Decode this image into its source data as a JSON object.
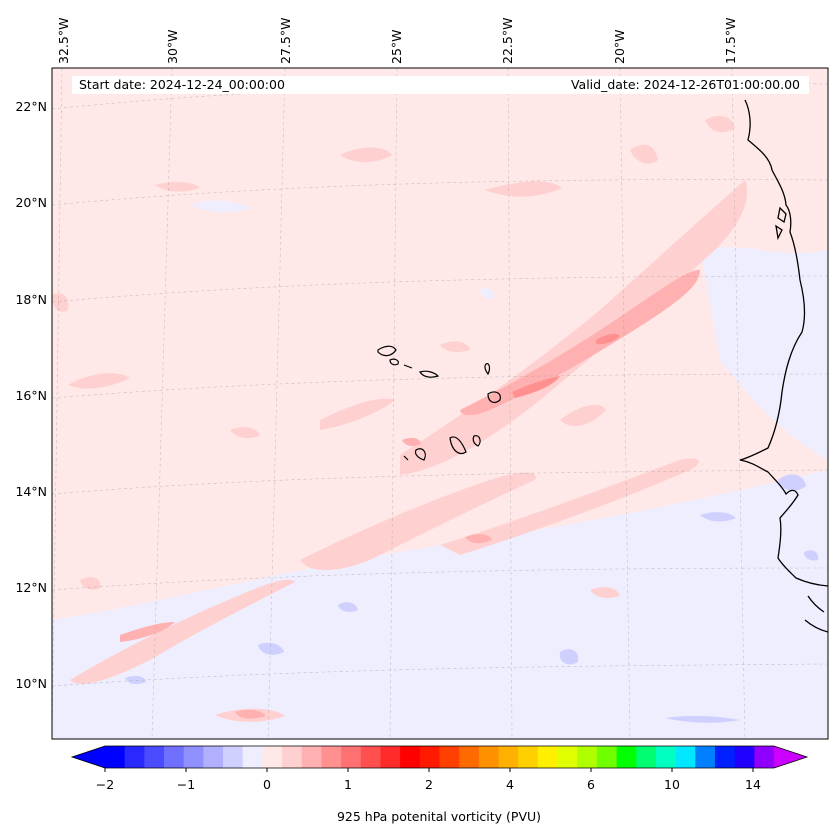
{
  "map": {
    "start_date": "Start date: 2024-12-24_00:00:00",
    "valid_date": "Valid_date: 2024-12-26T01:00:00.00",
    "lon_labels": [
      "32.5°W",
      "30°W",
      "27.5°W",
      "25°W",
      "22.5°W",
      "20°W",
      "17.5°W"
    ],
    "lat_labels": [
      "22°N",
      "20°N",
      "18°N",
      "16°N",
      "14°N",
      "12°N",
      "10°N"
    ],
    "background_color": "#ffe8e8",
    "coastline_color": "#000000"
  },
  "colorbar": {
    "label": "925 hPa potenital vorticity (PVU)",
    "tick_labels": [
      "−2",
      "−1",
      "0",
      "1",
      "2",
      "4",
      "6",
      "10",
      "14"
    ],
    "colors": [
      "#0000ff",
      "#2828ff",
      "#4b4bff",
      "#7070ff",
      "#9090ff",
      "#b0b0ff",
      "#d0d0ff",
      "#eeeeff",
      "#ffe8e8",
      "#ffd0d0",
      "#ffb0b0",
      "#ff9090",
      "#ff7070",
      "#ff5050",
      "#ff2a2a",
      "#ff0000",
      "#ff1a00",
      "#ff4000",
      "#ff6a00",
      "#ff9000",
      "#ffb000",
      "#ffd000",
      "#fff000",
      "#e0ff00",
      "#b0ff00",
      "#70ff00",
      "#00ff00",
      "#00ff70",
      "#00ffc0",
      "#00e8ff",
      "#0080ff",
      "#0020ff",
      "#2000ff",
      "#9000ff"
    ],
    "extend_min_color": "#0000ff",
    "extend_max_color": "#cc00ff"
  }
}
